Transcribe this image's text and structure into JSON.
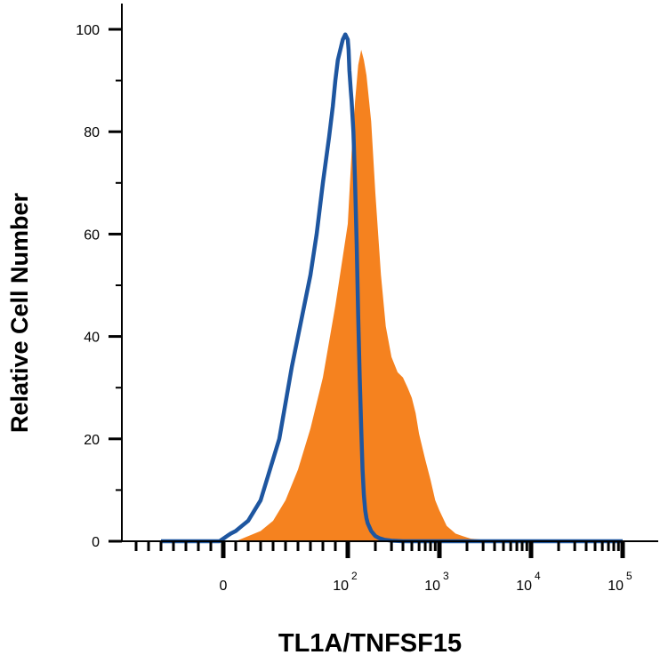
{
  "chart_data": {
    "type": "area",
    "title": "",
    "xlabel": "TL1A/TNFSF15",
    "ylabel": "Relative Cell Number",
    "x_scale": "biexponential",
    "y_range": [
      0,
      100
    ],
    "grid": false,
    "y_ticks": [
      {
        "value": 0,
        "label": "0"
      },
      {
        "value": 20,
        "label": "20"
      },
      {
        "value": 40,
        "label": "40"
      },
      {
        "value": 60,
        "label": "60"
      },
      {
        "value": 80,
        "label": "80"
      },
      {
        "value": 100,
        "label": "100"
      }
    ],
    "x_ticks": [
      {
        "base": "0",
        "exp": ""
      },
      {
        "base": "10",
        "exp": "2"
      },
      {
        "base": "10",
        "exp": "3"
      },
      {
        "base": "10",
        "exp": "4"
      },
      {
        "base": "10",
        "exp": "5"
      }
    ],
    "series": [
      {
        "style": "filled",
        "color": "#F5821F",
        "x": [
          -50,
          0,
          10,
          20,
          30,
          40,
          50,
          60,
          70,
          80,
          90,
          100,
          110,
          120,
          130,
          140,
          150,
          160,
          180,
          200,
          230,
          260,
          300,
          350,
          400,
          450,
          500,
          550,
          600,
          700,
          800,
          900,
          1000,
          1200,
          1500,
          1800,
          2200,
          3000,
          5000,
          10000,
          100000
        ],
        "values": [
          0,
          0,
          0,
          1,
          2,
          4,
          8,
          14,
          22,
          32,
          46,
          62,
          76,
          86,
          93,
          96,
          94,
          91,
          82,
          68,
          52,
          42,
          36,
          33,
          32,
          30,
          28,
          25,
          21,
          16,
          12,
          8,
          6,
          3,
          1.5,
          1,
          0.5,
          0.3,
          0.2,
          0,
          0
        ]
      },
      {
        "style": "outline",
        "color": "#1E56A0",
        "x": [
          -50,
          -3,
          0,
          3,
          6,
          10,
          15,
          20,
          25,
          30,
          35,
          40,
          45,
          50,
          55,
          60,
          65,
          70,
          75,
          80,
          85,
          88,
          90,
          92,
          94,
          96,
          98,
          100,
          102,
          104,
          106,
          108,
          110,
          115,
          120,
          125,
          130,
          135,
          140,
          145,
          150,
          155,
          160,
          165,
          170,
          175,
          180,
          190,
          200,
          220,
          250,
          300,
          400,
          1000,
          10000,
          100000
        ],
        "values": [
          0,
          0,
          0.5,
          1,
          1.5,
          2,
          3,
          4,
          6,
          8,
          12,
          16,
          20,
          27,
          34,
          40,
          46,
          52,
          60,
          70,
          79,
          85,
          90,
          94,
          96,
          98,
          99,
          98,
          96,
          92,
          90,
          88,
          86,
          80,
          70,
          58,
          44,
          32,
          22,
          14,
          9,
          6,
          4.5,
          3.5,
          3,
          2.5,
          2,
          1.5,
          1,
          0.6,
          0.3,
          0.1,
          0,
          0,
          0,
          0
        ]
      }
    ]
  }
}
